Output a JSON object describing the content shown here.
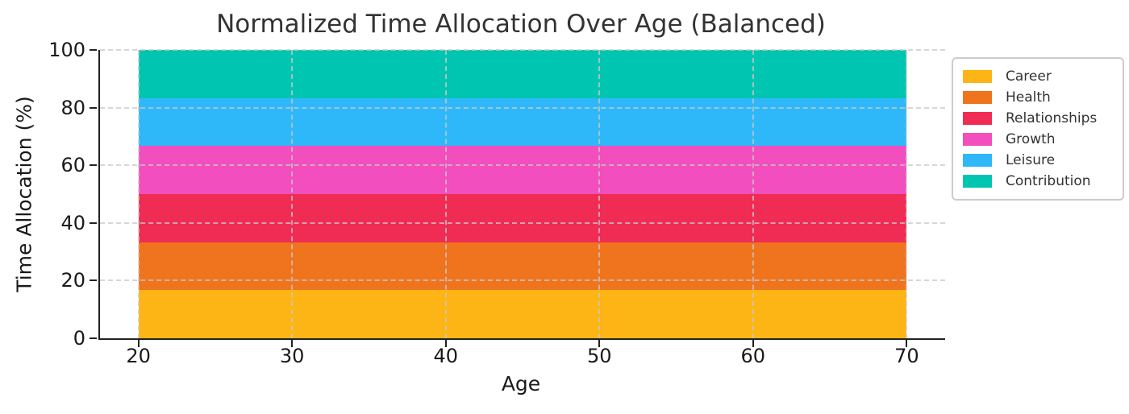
{
  "title": "Normalized Time Allocation Over Age (Balanced)",
  "chart_data": {
    "type": "area",
    "stacked": true,
    "normalized": true,
    "title": "Normalized Time Allocation Over Age (Balanced)",
    "xlabel": "Age",
    "ylabel": "Time Allocation (%)",
    "x": [
      20,
      30,
      40,
      50,
      60,
      70
    ],
    "series": [
      {
        "name": "Career",
        "color": "#FDB515",
        "values": [
          16.67,
          16.67,
          16.67,
          16.67,
          16.67,
          16.67
        ]
      },
      {
        "name": "Health",
        "color": "#F0741E",
        "values": [
          16.67,
          16.67,
          16.67,
          16.67,
          16.67,
          16.67
        ]
      },
      {
        "name": "Relationships",
        "color": "#F02C54",
        "values": [
          16.67,
          16.67,
          16.67,
          16.67,
          16.67,
          16.67
        ]
      },
      {
        "name": "Growth",
        "color": "#F24EBE",
        "values": [
          16.67,
          16.67,
          16.67,
          16.67,
          16.67,
          16.67
        ]
      },
      {
        "name": "Leisure",
        "color": "#2FB8F9",
        "values": [
          16.67,
          16.67,
          16.67,
          16.67,
          16.67,
          16.67
        ]
      },
      {
        "name": "Contribution",
        "color": "#00C5B0",
        "values": [
          16.67,
          16.67,
          16.67,
          16.67,
          16.67,
          16.67
        ]
      }
    ],
    "xlim": [
      17.5,
      72.5
    ],
    "ylim": [
      0,
      100
    ],
    "xticks": [
      20,
      30,
      40,
      50,
      60,
      70
    ],
    "x_tick_labels": [
      "20",
      "30",
      "40",
      "50",
      "60",
      "70"
    ],
    "yticks": [
      0,
      20,
      40,
      60,
      80,
      100
    ],
    "y_tick_labels": [
      "0",
      "20",
      "40",
      "60",
      "80",
      "100"
    ],
    "grid": {
      "linestyle": "dashed",
      "color": "#cccccc"
    },
    "legend": {
      "position": "outside-right",
      "entries": [
        "Career",
        "Health",
        "Relationships",
        "Growth",
        "Leisure",
        "Contribution"
      ]
    }
  }
}
